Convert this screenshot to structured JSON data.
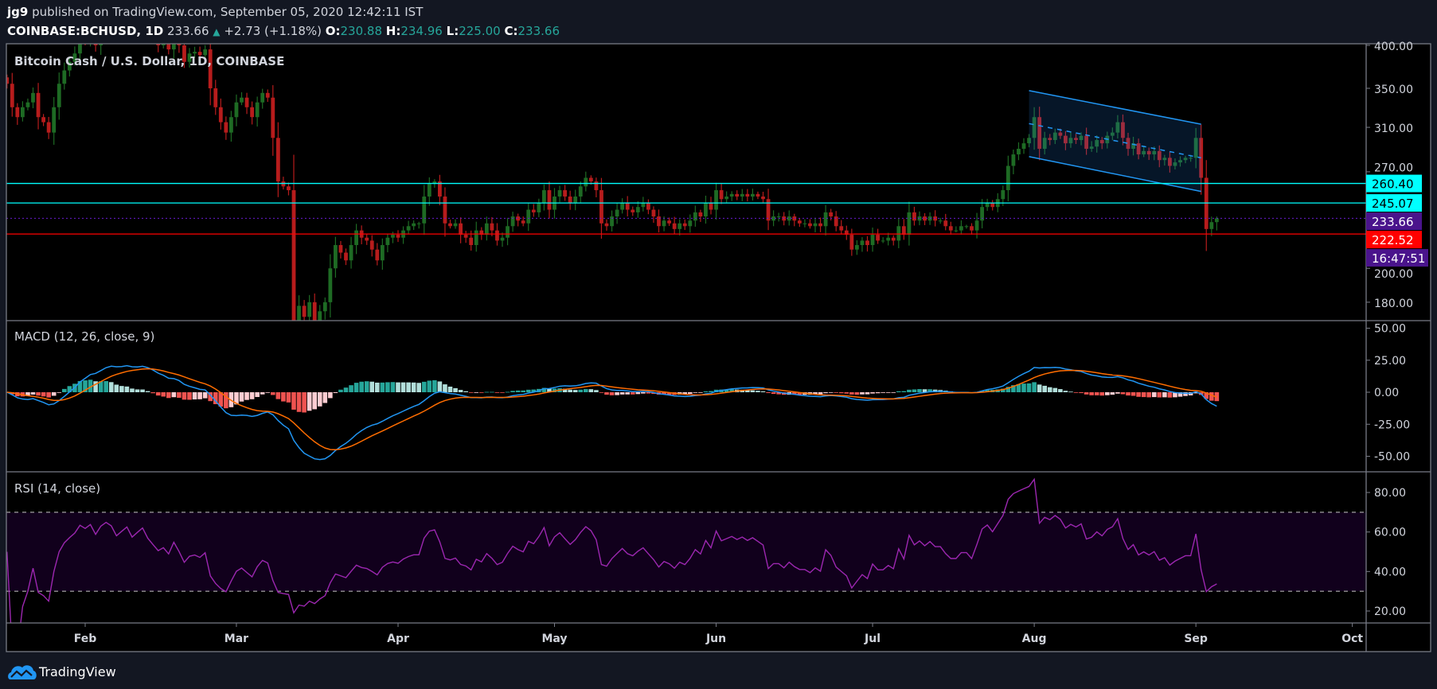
{
  "header": {
    "publisher": "jg9",
    "published_text": "published on TradingView.com, September 05, 2020 12:42:11 IST",
    "symbol": "COINBASE:BCHUSD, 1D",
    "last": "233.66",
    "change": "+2.73 (+1.18%)",
    "o_label": "O:",
    "o": "230.88",
    "h_label": "H:",
    "h": "234.96",
    "l_label": "L:",
    "l": "225.00",
    "c_label": "C:",
    "c": "233.66"
  },
  "footer": {
    "brand": "TradingView"
  },
  "colors": {
    "up": "#1e6b24",
    "down": "#b71c1c",
    "cyan": "#00ffff",
    "red_line": "#ff0000",
    "last_price": "#4a148c",
    "macd": "#2196f3",
    "signal": "#ff6d00",
    "rsi": "#9c27b0",
    "channel": "#2196f3"
  },
  "chart_data": [
    {
      "type": "candlestick",
      "title": "Bitcoin Cash / U.S. Dollar, 1D, COINBASE",
      "start_date": "2020-01-17",
      "scale": "log",
      "ylim": [
        176,
        405
      ],
      "y_ticks": [
        "400.00",
        "350.00",
        "310.00",
        "270.00",
        "200.00",
        "180.00"
      ],
      "y_tick_values": [
        400,
        350,
        310,
        270,
        200,
        180
      ],
      "x_ticks": [
        {
          "label": "Feb",
          "day": 15
        },
        {
          "label": "Mar",
          "day": 44
        },
        {
          "label": "Apr",
          "day": 75
        },
        {
          "label": "May",
          "day": 105
        },
        {
          "label": "Jun",
          "day": 136
        },
        {
          "label": "Jul",
          "day": 166
        },
        {
          "label": "Aug",
          "day": 197
        },
        {
          "label": "Sep",
          "day": 228
        },
        {
          "label": "Oct",
          "day": 258
        }
      ],
      "last_bar": {
        "open": 230.88,
        "high": 234.96,
        "low": 225.0,
        "close": 233.66
      },
      "closes": [
        355,
        330,
        320,
        330,
        335,
        345,
        320,
        315,
        305,
        330,
        355,
        370,
        380,
        390,
        410,
        405,
        415,
        400,
        420,
        430,
        425,
        410,
        420,
        430,
        415,
        425,
        435,
        420,
        410,
        400,
        405,
        395,
        415,
        400,
        380,
        390,
        392,
        388,
        395,
        350,
        330,
        315,
        305,
        320,
        335,
        340,
        330,
        320,
        335,
        345,
        340,
        300,
        262,
        258,
        255,
        165,
        178,
        172,
        180,
        168,
        175,
        180,
        200,
        215,
        210,
        205,
        215,
        225,
        220,
        218,
        212,
        205,
        215,
        220,
        222,
        220,
        225,
        228,
        230,
        230,
        250,
        260,
        262,
        250,
        230,
        228,
        230,
        222,
        220,
        215,
        225,
        222,
        230,
        225,
        218,
        220,
        228,
        235,
        232,
        230,
        240,
        238,
        245,
        255,
        240,
        250,
        255,
        250,
        245,
        250,
        258,
        265,
        262,
        255,
        230,
        228,
        235,
        240,
        245,
        240,
        238,
        242,
        245,
        240,
        235,
        228,
        232,
        230,
        226,
        230,
        228,
        232,
        238,
        235,
        245,
        240,
        255,
        248,
        250,
        252,
        250,
        252,
        250,
        252,
        250,
        248,
        232,
        235,
        235,
        232,
        235,
        232,
        230,
        230,
        228,
        230,
        228,
        238,
        235,
        228,
        225,
        222,
        212,
        215,
        218,
        215,
        222,
        218,
        218,
        220,
        218,
        228,
        222,
        238,
        232,
        235,
        232,
        235,
        232,
        232,
        228,
        225,
        225,
        228,
        228,
        225,
        232,
        242,
        245,
        242,
        248,
        255,
        275,
        285,
        290,
        295,
        300,
        320,
        290,
        300,
        298,
        305,
        302,
        295,
        300,
        298,
        302,
        290,
        292,
        298,
        295,
        302,
        305,
        315,
        300,
        290,
        295,
        285,
        288,
        285,
        288,
        280,
        282,
        275,
        278,
        280,
        282,
        282,
        300,
        265,
        226,
        230.88,
        233.66
      ],
      "horizontal_lines": [
        {
          "value": 260.4,
          "label": "260.40",
          "color": "#00ffff"
        },
        {
          "value": 245.07,
          "label": "245.07",
          "color": "#00ffff"
        },
        {
          "value": 222.52,
          "label": "222.52",
          "color": "#ff0000"
        }
      ],
      "last_price_label": "233.66",
      "last_price_value": 233.66,
      "countdown": "16:47:51",
      "channel": {
        "start_day": 196,
        "end_day": 229,
        "top": [
          347.5,
          313
        ],
        "bottom": [
          283,
          254
        ]
      }
    },
    {
      "type": "line",
      "title": "MACD (12, 26, close, 9)",
      "params": {
        "fast": 12,
        "slow": 26,
        "signal": 9
      },
      "ylim": [
        -56,
        56
      ],
      "y_ticks": [
        "50.00",
        "25.00",
        "0.00",
        "-25.00",
        "-50.00"
      ],
      "y_tick_values": [
        50,
        25,
        0,
        -25,
        -50
      ]
    },
    {
      "type": "line",
      "title": "RSI (14, close)",
      "period": 14,
      "ylim": [
        14,
        90
      ],
      "bands": [
        70,
        30
      ],
      "y_ticks": [
        "80.00",
        "60.00",
        "40.00",
        "20.00"
      ],
      "y_tick_values": [
        80,
        60,
        40,
        20
      ]
    }
  ]
}
